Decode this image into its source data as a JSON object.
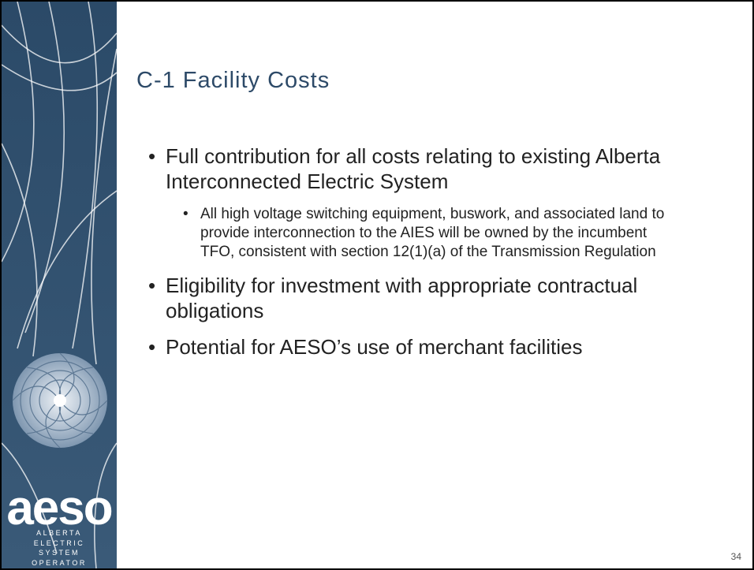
{
  "slide": {
    "title": "C-1 Facility Costs",
    "bullets": [
      {
        "text": "Full contribution for all costs relating to existing Alberta Interconnected Electric System",
        "sub": [
          "All high voltage switching equipment, buswork, and associated land to provide interconnection to the AIES will be owned by the incumbent TFO, consistent with section 12(1)(a) of the Transmission Regulation"
        ]
      },
      {
        "text": "Eligibility for investment with appropriate contractual obligations",
        "sub": []
      },
      {
        "text": "Potential for AESO’s use of merchant facilities",
        "sub": []
      }
    ],
    "logo": {
      "name": "aeso",
      "lines": [
        "ALBERTA",
        "ELECTRIC",
        "SYSTEM",
        "OPERATOR"
      ]
    },
    "page_number": "34"
  }
}
